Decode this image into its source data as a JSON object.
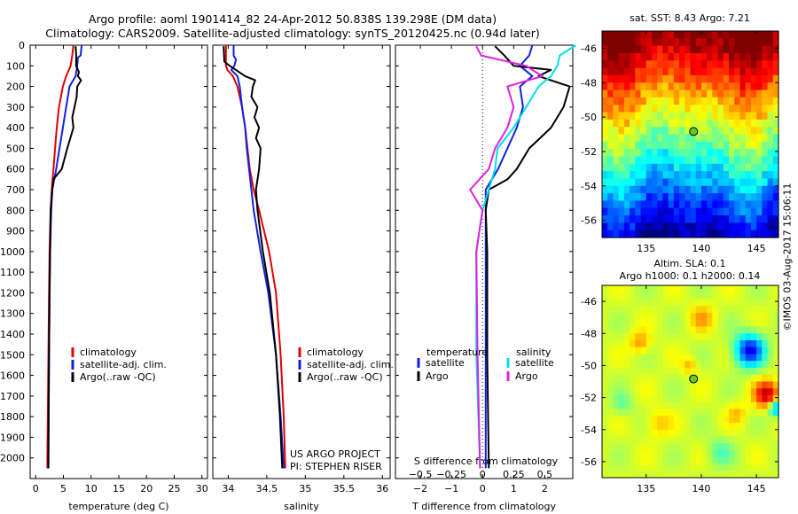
{
  "header": {
    "line1": "Argo profile: aoml 1901414_82 24-Apr-2012 50.838S 139.298E (DM data)",
    "line2": "Climatology: CARS2009. Satellite-adjusted climatology: synTS_20120425.nc (0.94d later)"
  },
  "depth_ticks": [
    "0",
    "100",
    "200",
    "300",
    "400",
    "500",
    "600",
    "700",
    "800",
    "900",
    "1000",
    "1100",
    "1200",
    "1300",
    "1400",
    "1500",
    "1600",
    "1700",
    "1800",
    "1900",
    "2000"
  ],
  "colors": {
    "climatology": "#e00000",
    "satellite": "#1020e0",
    "argo": "#000000",
    "t_sat": "#1020e0",
    "t_argo": "#000000",
    "s_sat": "#00e0e8",
    "s_argo": "#e020e0"
  },
  "chart_data": [
    {
      "id": "temperature",
      "type": "line",
      "xlabel": "temperature (deg C)",
      "xlim": [
        -1,
        31
      ],
      "ylim": [
        2100,
        0
      ],
      "xticks": [
        0,
        5,
        10,
        15,
        20,
        25,
        30
      ],
      "xticklabels": [
        "0",
        "5",
        "10",
        "15",
        "20",
        "25",
        "30"
      ],
      "legend": [
        "climatology",
        "satellite-adj. clim.",
        "Argo(..raw -QC)"
      ],
      "series": [
        {
          "name": "climatology",
          "depth": [
            0,
            50,
            100,
            150,
            200,
            300,
            400,
            500,
            600,
            700,
            800,
            1000,
            1200,
            1500,
            2000,
            2050
          ],
          "values": [
            6.8,
            6.6,
            6.3,
            5.5,
            4.9,
            4.2,
            3.8,
            3.5,
            3.2,
            2.9,
            2.7,
            2.5,
            2.4,
            2.3,
            2.1,
            2.1
          ]
        },
        {
          "name": "satellite-adj. clim.",
          "depth": [
            0,
            50,
            60,
            100,
            150,
            200,
            300,
            400,
            500,
            600,
            700,
            800,
            1000,
            1200,
            1500,
            2000,
            2050
          ],
          "values": [
            8.3,
            8.1,
            7.6,
            7.5,
            7.2,
            6.1,
            5.5,
            4.9,
            4.3,
            3.7,
            3.0,
            2.8,
            2.6,
            2.5,
            2.4,
            2.3,
            2.3
          ]
        },
        {
          "name": "Argo(..raw -QC)",
          "depth": [
            5,
            50,
            100,
            130,
            150,
            170,
            200,
            250,
            300,
            350,
            400,
            500,
            600,
            650,
            700,
            800,
            1000,
            1200,
            1500,
            2000,
            2050
          ],
          "values": [
            7.2,
            7.3,
            7.3,
            7.8,
            7.6,
            8.2,
            7.5,
            7.4,
            7.0,
            6.6,
            6.8,
            5.7,
            4.7,
            3.2,
            3.0,
            2.7,
            2.6,
            2.5,
            2.4,
            2.3,
            2.3
          ]
        }
      ]
    },
    {
      "id": "salinity",
      "type": "line",
      "xlabel": "salinity",
      "xlim": [
        33.8,
        36.1
      ],
      "ylim": [
        2100,
        0
      ],
      "xticks": [
        34,
        34.5,
        35,
        35.5,
        36
      ],
      "xticklabels": [
        "34",
        "34.5",
        "35",
        "35.5",
        "36"
      ],
      "legend": [
        "climatology",
        "satellite-adj. clim.",
        "Argo(..raw -QC)"
      ],
      "annotation": [
        "US ARGO PROJECT",
        "PI: STEPHEN RISER"
      ],
      "series": [
        {
          "name": "climatology",
          "depth": [
            0,
            100,
            120,
            150,
            200,
            300,
            400,
            500,
            600,
            700,
            800,
            1000,
            1200,
            1500,
            1800,
            2050
          ],
          "values": [
            33.97,
            33.97,
            33.99,
            34.06,
            34.12,
            34.18,
            34.22,
            34.25,
            34.28,
            34.33,
            34.4,
            34.53,
            34.62,
            34.68,
            34.72,
            34.74
          ]
        },
        {
          "name": "satellite-adj. clim.",
          "depth": [
            0,
            50,
            70,
            100,
            120,
            150,
            200,
            300,
            400,
            500,
            600,
            700,
            800,
            1000,
            1200,
            1500,
            1800,
            2050
          ],
          "values": [
            34.07,
            34.07,
            34.1,
            34.08,
            34.04,
            34.12,
            34.15,
            34.18,
            34.22,
            34.24,
            34.27,
            34.3,
            34.33,
            34.42,
            34.52,
            34.62,
            34.68,
            34.72
          ]
        },
        {
          "name": "Argo(..raw -QC)",
          "depth": [
            5,
            80,
            100,
            120,
            150,
            170,
            200,
            250,
            300,
            350,
            400,
            450,
            500,
            600,
            700,
            800,
            1000,
            1200,
            1500,
            1800,
            2050
          ],
          "values": [
            33.94,
            33.95,
            34.02,
            34.1,
            34.22,
            34.35,
            34.32,
            34.3,
            34.38,
            34.34,
            34.4,
            34.36,
            34.42,
            34.4,
            34.36,
            34.38,
            34.45,
            34.54,
            34.62,
            34.67,
            34.7
          ]
        }
      ]
    },
    {
      "id": "differences",
      "type": "line",
      "xlabel": "T difference from climatology",
      "top_label": "S difference from climatology",
      "xlim": [
        -2.8,
        2.9
      ],
      "ylim": [
        2100,
        0
      ],
      "xticks": [
        -2,
        -1,
        0,
        1,
        2
      ],
      "xticklabels": [
        "−2",
        "−1",
        "0",
        "1",
        "2"
      ],
      "top_ticks": [
        -0.5,
        -0.25,
        0,
        0.25,
        0.5
      ],
      "top_ticklabels": [
        "−0.5",
        "−0.25",
        "0",
        "0.25",
        "0.5"
      ],
      "legend_headers": [
        "temperature",
        "salinity"
      ],
      "legend_t": [
        "satellite",
        "Argo"
      ],
      "legend_s": [
        "satellite",
        "Argo"
      ],
      "series": [
        {
          "name": "T satellite",
          "depth": [
            0,
            50,
            100,
            150,
            200,
            300,
            400,
            500,
            600,
            700,
            800,
            1000,
            1200,
            1500,
            2050
          ],
          "values": [
            1.6,
            1.5,
            1.2,
            1.6,
            1.2,
            1.3,
            1.1,
            0.8,
            0.5,
            0.1,
            0.1,
            0.1,
            0.1,
            0.1,
            0.1
          ]
        },
        {
          "name": "T Argo",
          "depth": [
            5,
            50,
            100,
            120,
            150,
            200,
            300,
            400,
            500,
            600,
            650,
            700,
            800,
            1000,
            1200,
            1500,
            2050
          ],
          "values": [
            0.4,
            0.7,
            1.0,
            2.2,
            1.8,
            2.8,
            2.6,
            2.2,
            1.5,
            1.1,
            0.8,
            0.2,
            0.1,
            0.15,
            0.15,
            0.15,
            0.2
          ]
        },
        {
          "name": "S satellite",
          "depth": [
            0,
            50,
            100,
            150,
            200,
            300,
            400,
            500,
            600,
            700,
            800,
            1000,
            1500,
            2050
          ],
          "values": [
            0.75,
            0.62,
            0.6,
            0.55,
            0.45,
            0.35,
            0.25,
            0.12,
            0.1,
            0.05,
            0.0,
            -0.05,
            -0.05,
            -0.02
          ]
        },
        {
          "name": "S Argo",
          "depth": [
            5,
            50,
            100,
            120,
            150,
            200,
            300,
            400,
            500,
            600,
            700,
            800,
            1000,
            1500,
            2050
          ],
          "values": [
            -0.05,
            -0.01,
            0.35,
            0.4,
            0.48,
            0.2,
            0.25,
            0.2,
            0.1,
            0.05,
            -0.1,
            0.0,
            -0.05,
            -0.04,
            -0.02
          ]
        }
      ]
    }
  ],
  "maps": {
    "sst": {
      "title": "sat. SST: 8.43 Argo: 7.21",
      "yticks": [
        "-46",
        "-48",
        "-50",
        "-52",
        "-54",
        "-56"
      ],
      "xticks": [
        "135",
        "140",
        "145"
      ]
    },
    "sla": {
      "title1": "Altim. SLA: 0.1",
      "title2": "Argo h1000: 0.1 h2000: 0.14",
      "yticks": [
        "-46",
        "-48",
        "-50",
        "-52",
        "-54",
        "-56"
      ],
      "xticks": [
        "135",
        "140",
        "145"
      ]
    }
  },
  "footer": {
    "credit": "©IMOS 03-Aug-2017 15:06:11"
  }
}
